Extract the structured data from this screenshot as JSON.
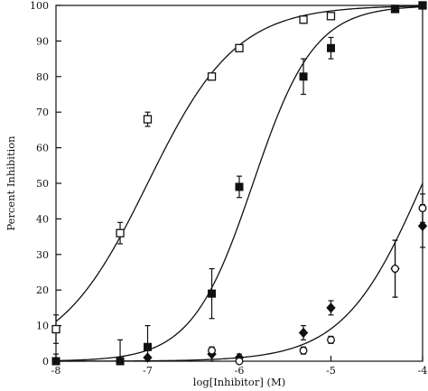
{
  "chart_data": {
    "type": "scatter",
    "title": "",
    "xlabel": "log[Inhibitor] (M)",
    "ylabel": "Percent Inhibition",
    "xlim": [
      -8,
      -4
    ],
    "ylim": [
      0,
      100
    ],
    "x_ticks": [
      -8,
      -7,
      -6,
      -5,
      -4
    ],
    "y_ticks": [
      0,
      10,
      20,
      30,
      40,
      50,
      60,
      70,
      80,
      90,
      100
    ],
    "grid": false,
    "legend": "none",
    "series": [
      {
        "marker": "open-square",
        "x": [
          -8.0,
          -7.3,
          -7.0,
          -6.3,
          -6.0,
          -5.3,
          -5.0,
          -4.3,
          -4.0
        ],
        "y": [
          9,
          36,
          68,
          80,
          88,
          96,
          97,
          99,
          100
        ],
        "err": [
          4,
          3,
          2,
          0.5,
          0.5,
          1,
          0.5,
          0.5,
          0.5
        ],
        "fit_ic50_log": -7.0,
        "fit_hill": 0.9
      },
      {
        "marker": "filled-square",
        "x": [
          -8.0,
          -7.3,
          -7.0,
          -6.3,
          -6.0,
          -5.3,
          -5.0,
          -4.3,
          -4.0
        ],
        "y": [
          0,
          0,
          4,
          19,
          49,
          80,
          88,
          99,
          100
        ],
        "err": [
          2,
          6,
          6,
          7,
          3,
          5,
          3,
          1,
          1
        ],
        "fit_ic50_log": -5.85,
        "fit_hill": 1.3
      },
      {
        "marker": "filled-diamond",
        "x": [
          -7.0,
          -6.3,
          -6.0,
          -5.3,
          -5.0,
          -4.3,
          -4.0
        ],
        "y": [
          1,
          2,
          1,
          8,
          15,
          26,
          38
        ],
        "err": [
          2,
          2,
          1,
          2,
          2,
          8,
          6
        ],
        "fit_ic50_log": -4.0,
        "fit_hill": 1.0
      },
      {
        "marker": "open-circle",
        "x": [
          -6.3,
          -6.0,
          -5.3,
          -5.0,
          -4.3,
          -4.0
        ],
        "y": [
          3,
          0,
          3,
          6,
          26,
          43
        ],
        "err": [
          1,
          1,
          1,
          1,
          8,
          4
        ]
      }
    ]
  }
}
